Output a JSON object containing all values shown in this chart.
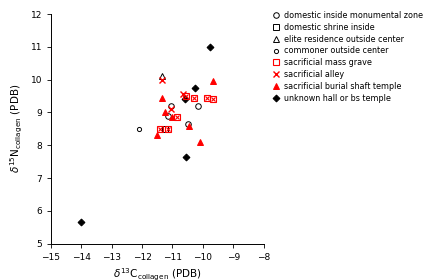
{
  "xlim": [
    -15,
    -8
  ],
  "ylim": [
    5,
    12
  ],
  "xticks": [
    -15,
    -14,
    -13,
    -12,
    -11,
    -10,
    -9,
    -8
  ],
  "yticks": [
    5,
    6,
    7,
    8,
    9,
    10,
    11,
    12
  ],
  "domestic_inside_monumental": [
    [
      -11.15,
      8.9
    ],
    [
      -11.05,
      9.2
    ],
    [
      -10.5,
      8.65
    ],
    [
      -10.15,
      9.2
    ]
  ],
  "domestic_shrine_inside": [
    [
      -11.25,
      8.5
    ]
  ],
  "elite_residence_outside_center": [
    [
      -11.35,
      10.1
    ]
  ],
  "commoner_outside_center": [
    [
      -12.1,
      8.5
    ]
  ],
  "sacrificial_mass_grave": [
    [
      -11.4,
      8.5
    ],
    [
      -11.15,
      8.5
    ],
    [
      -10.85,
      8.85
    ],
    [
      -10.55,
      9.5
    ],
    [
      -10.3,
      9.45
    ],
    [
      -9.85,
      9.45
    ],
    [
      -9.65,
      9.4
    ]
  ],
  "sacrificial_alley": [
    [
      -11.35,
      10.0
    ],
    [
      -11.05,
      9.1
    ],
    [
      -10.65,
      9.55
    ]
  ],
  "sacrificial_burial_shaft_temple": [
    [
      -11.5,
      8.3
    ],
    [
      -11.35,
      9.45
    ],
    [
      -11.25,
      9.0
    ],
    [
      -11.0,
      8.85
    ],
    [
      -10.45,
      8.6
    ],
    [
      -10.1,
      8.1
    ],
    [
      -9.65,
      9.95
    ]
  ],
  "unknown_hall_or_bs_temple": [
    [
      -14.0,
      5.65
    ],
    [
      -10.6,
      9.4
    ],
    [
      -10.55,
      7.65
    ],
    [
      -10.25,
      9.75
    ],
    [
      -9.75,
      11.0
    ]
  ],
  "legend_fontsize": 5.8,
  "axis_fontsize": 7.5,
  "tick_fontsize": 6.5
}
